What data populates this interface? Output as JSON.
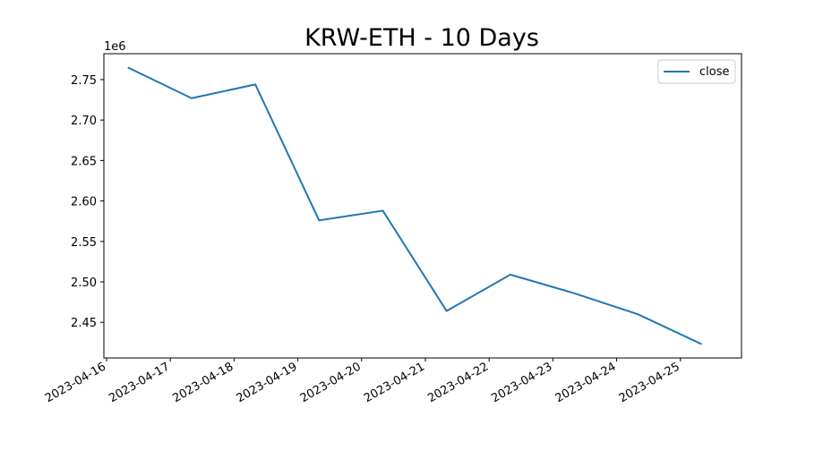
{
  "chart_data": {
    "type": "line",
    "title": "KRW-ETH - 10 Days",
    "xlabel": "",
    "ylabel": "",
    "y_offset_label": "1e6",
    "x": [
      "2023-04-16 08:00",
      "2023-04-17 08:00",
      "2023-04-18 08:00",
      "2023-04-19 08:00",
      "2023-04-20 08:00",
      "2023-04-21 08:00",
      "2023-04-22 08:00",
      "2023-04-23 08:00",
      "2023-04-24 08:00",
      "2023-04-25 08:00"
    ],
    "series": [
      {
        "name": "close",
        "color": "#1f77b4",
        "values": [
          2765000,
          2727000,
          2744000,
          2576000,
          2588000,
          2464000,
          2509000,
          2486000,
          2460000,
          2423000
        ]
      }
    ],
    "x_ticks": [
      "2023-04-16",
      "2023-04-17",
      "2023-04-18",
      "2023-04-19",
      "2023-04-20",
      "2023-04-21",
      "2023-04-22",
      "2023-04-23",
      "2023-04-24",
      "2023-04-25"
    ],
    "y_ticks": [
      "2.45",
      "2.50",
      "2.55",
      "2.60",
      "2.65",
      "2.70",
      "2.75"
    ],
    "y_tick_values": [
      2450000,
      2500000,
      2550000,
      2600000,
      2650000,
      2700000,
      2750000
    ],
    "xlim": [
      "2023-04-15 23:00",
      "2023-04-25 23:00"
    ],
    "ylim": [
      2406000,
      2782000
    ],
    "legend": "top-right",
    "grid": false
  }
}
